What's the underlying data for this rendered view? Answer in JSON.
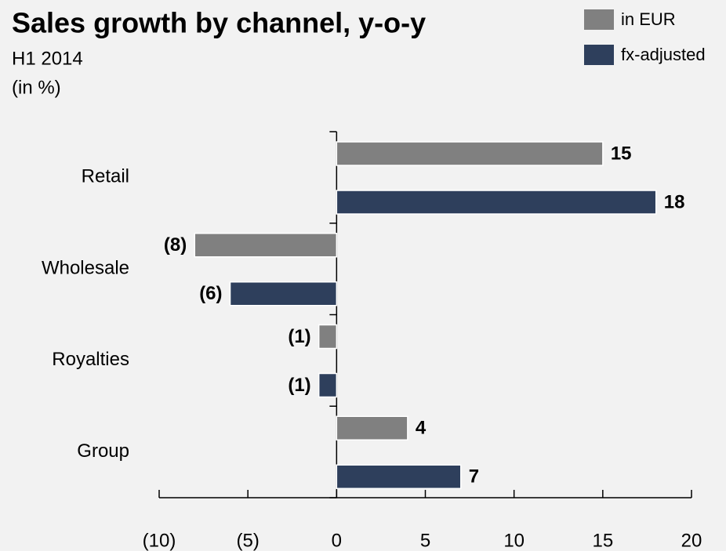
{
  "chart_data": {
    "type": "hbar",
    "title": "Sales growth by channel, y-o-y",
    "subtitle": "H1 2014",
    "unit_label": "(in %)",
    "categories": [
      "Retail",
      "Wholesale",
      "Royalties",
      "Group"
    ],
    "series": [
      {
        "name": "in EUR",
        "color": "#808080",
        "values": [
          15,
          -8,
          -1,
          4
        ],
        "value_labels": [
          "15",
          "(8)",
          "(1)",
          "4"
        ]
      },
      {
        "name": "fx-adjusted",
        "color": "#2e3f5c",
        "values": [
          18,
          -6,
          -1,
          7
        ],
        "value_labels": [
          "18",
          "(6)",
          "(1)",
          "7"
        ]
      }
    ],
    "xlim": [
      -10,
      20
    ],
    "xticks": [
      {
        "value": -10,
        "label": "(10)"
      },
      {
        "value": -5,
        "label": "(5)"
      },
      0,
      5,
      10,
      15,
      20
    ],
    "legend": "top-right"
  }
}
